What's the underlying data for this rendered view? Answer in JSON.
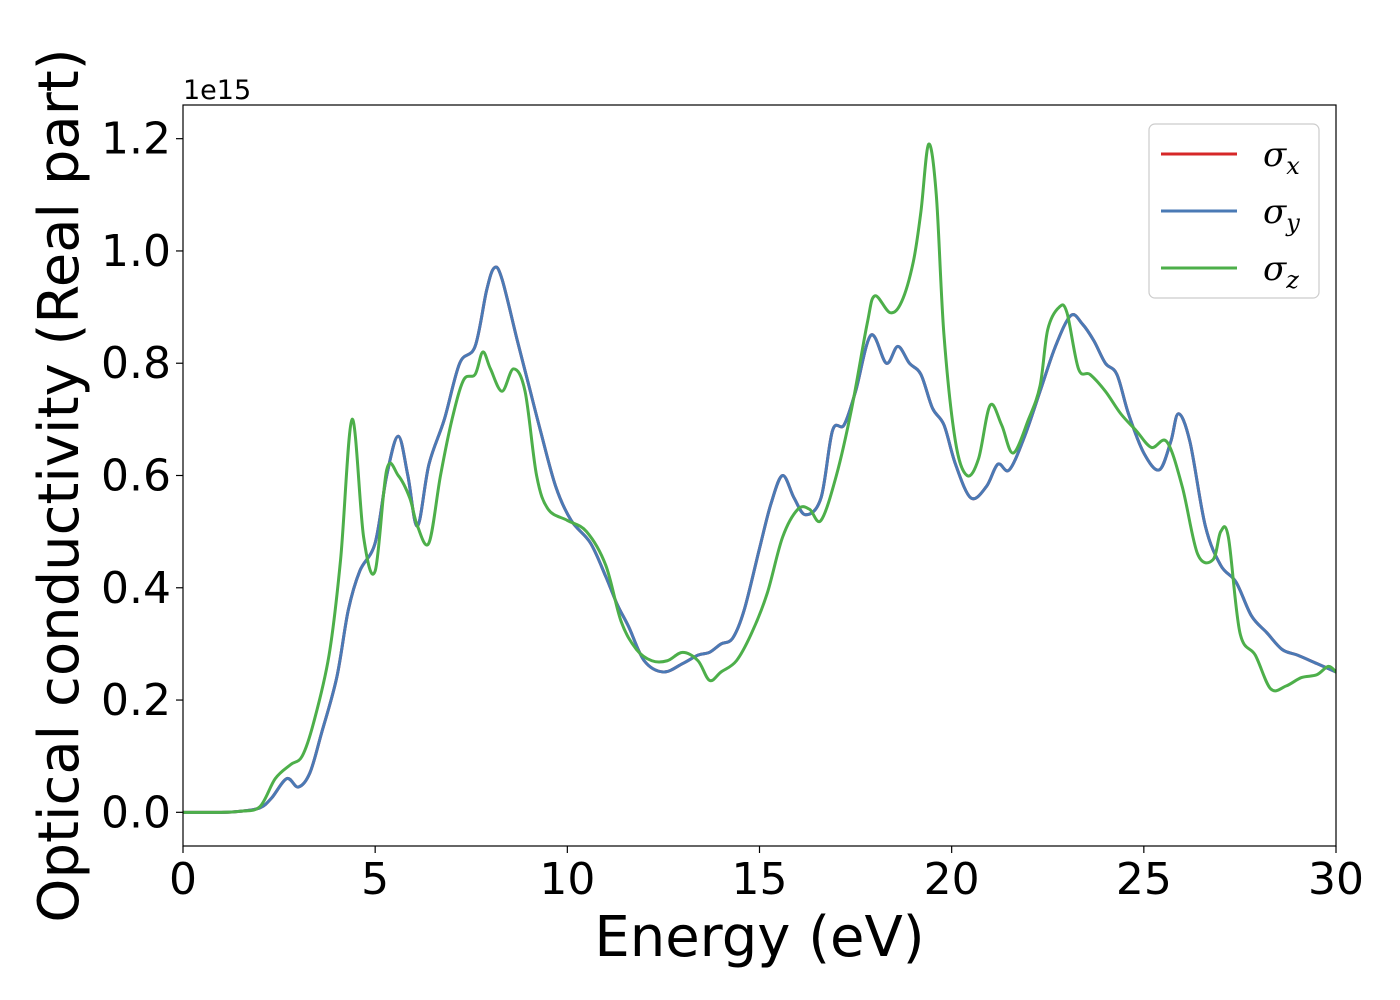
{
  "chart_data": {
    "type": "line",
    "title": "",
    "xlabel": "Energy (eV)",
    "ylabel": "Optical conductivity (Real part)",
    "y_offset_label": "1e15",
    "xlim": [
      0,
      30
    ],
    "ylim": [
      -0.06,
      1.26
    ],
    "xticks": [
      0,
      5,
      10,
      15,
      20,
      25,
      30
    ],
    "xtick_labels": [
      "0",
      "5",
      "10",
      "15",
      "20",
      "25",
      "30"
    ],
    "yticks": [
      0.0,
      0.2,
      0.4,
      0.6,
      0.8,
      1.0,
      1.2
    ],
    "ytick_labels": [
      "0.0",
      "0.2",
      "0.4",
      "0.6",
      "0.8",
      "1.0",
      "1.2"
    ],
    "grid": false,
    "legend_position": "top-right",
    "series": [
      {
        "name": "σ_x",
        "symbol": "σ",
        "subscript": "x",
        "color": "#d62728",
        "x": [
          0,
          1,
          1.5,
          2,
          2.3,
          2.7,
          3.0,
          3.3,
          3.6,
          4.0,
          4.3,
          4.6,
          5.0,
          5.3,
          5.6,
          5.85,
          6.1,
          6.4,
          6.8,
          7.2,
          7.6,
          7.9,
          8.1,
          8.3,
          8.7,
          9.0,
          9.3,
          9.7,
          10.1,
          10.6,
          11.0,
          11.3,
          11.6,
          12.0,
          12.5,
          13.0,
          13.4,
          13.7,
          14.0,
          14.3,
          14.6,
          15.0,
          15.3,
          15.6,
          15.9,
          16.2,
          16.6,
          16.9,
          17.2,
          17.5,
          17.9,
          18.3,
          18.6,
          18.9,
          19.2,
          19.5,
          19.8,
          20.1,
          20.5,
          20.9,
          21.2,
          21.5,
          21.9,
          22.3,
          22.7,
          23.1,
          23.4,
          23.7,
          24.0,
          24.3,
          24.6,
          25.0,
          25.4,
          25.7,
          25.9,
          26.2,
          26.6,
          27.0,
          27.4,
          27.8,
          28.2,
          28.6,
          29.0,
          29.5,
          30.0
        ],
        "y": [
          0.0,
          0.0,
          0.002,
          0.008,
          0.025,
          0.06,
          0.045,
          0.07,
          0.14,
          0.24,
          0.36,
          0.43,
          0.48,
          0.6,
          0.67,
          0.6,
          0.51,
          0.62,
          0.7,
          0.8,
          0.83,
          0.93,
          0.97,
          0.95,
          0.84,
          0.76,
          0.68,
          0.58,
          0.52,
          0.48,
          0.42,
          0.37,
          0.33,
          0.27,
          0.25,
          0.265,
          0.28,
          0.285,
          0.3,
          0.31,
          0.36,
          0.47,
          0.55,
          0.6,
          0.56,
          0.53,
          0.56,
          0.68,
          0.69,
          0.75,
          0.85,
          0.8,
          0.83,
          0.8,
          0.78,
          0.72,
          0.69,
          0.62,
          0.56,
          0.58,
          0.62,
          0.61,
          0.67,
          0.75,
          0.83,
          0.885,
          0.87,
          0.84,
          0.8,
          0.78,
          0.71,
          0.64,
          0.61,
          0.66,
          0.71,
          0.66,
          0.51,
          0.44,
          0.41,
          0.35,
          0.32,
          0.29,
          0.28,
          0.265,
          0.25
        ]
      },
      {
        "name": "σ_y",
        "symbol": "σ",
        "subscript": "y",
        "color": "#4a7ab5",
        "x": [
          0,
          1,
          1.5,
          2,
          2.3,
          2.7,
          3.0,
          3.3,
          3.6,
          4.0,
          4.3,
          4.6,
          5.0,
          5.3,
          5.6,
          5.85,
          6.1,
          6.4,
          6.8,
          7.2,
          7.6,
          7.9,
          8.1,
          8.3,
          8.7,
          9.0,
          9.3,
          9.7,
          10.1,
          10.6,
          11.0,
          11.3,
          11.6,
          12.0,
          12.5,
          13.0,
          13.4,
          13.7,
          14.0,
          14.3,
          14.6,
          15.0,
          15.3,
          15.6,
          15.9,
          16.2,
          16.6,
          16.9,
          17.2,
          17.5,
          17.9,
          18.3,
          18.6,
          18.9,
          19.2,
          19.5,
          19.8,
          20.1,
          20.5,
          20.9,
          21.2,
          21.5,
          21.9,
          22.3,
          22.7,
          23.1,
          23.4,
          23.7,
          24.0,
          24.3,
          24.6,
          25.0,
          25.4,
          25.7,
          25.9,
          26.2,
          26.6,
          27.0,
          27.4,
          27.8,
          28.2,
          28.6,
          29.0,
          29.5,
          30.0
        ],
        "y": [
          0.0,
          0.0,
          0.002,
          0.008,
          0.025,
          0.06,
          0.045,
          0.07,
          0.14,
          0.24,
          0.36,
          0.43,
          0.48,
          0.6,
          0.67,
          0.6,
          0.51,
          0.62,
          0.7,
          0.8,
          0.83,
          0.93,
          0.97,
          0.95,
          0.84,
          0.76,
          0.68,
          0.58,
          0.52,
          0.48,
          0.42,
          0.37,
          0.33,
          0.27,
          0.25,
          0.265,
          0.28,
          0.285,
          0.3,
          0.31,
          0.36,
          0.47,
          0.55,
          0.6,
          0.56,
          0.53,
          0.56,
          0.68,
          0.69,
          0.75,
          0.85,
          0.8,
          0.83,
          0.8,
          0.78,
          0.72,
          0.69,
          0.62,
          0.56,
          0.58,
          0.62,
          0.61,
          0.67,
          0.75,
          0.83,
          0.885,
          0.87,
          0.84,
          0.8,
          0.78,
          0.71,
          0.64,
          0.61,
          0.66,
          0.71,
          0.66,
          0.51,
          0.44,
          0.41,
          0.35,
          0.32,
          0.29,
          0.28,
          0.265,
          0.25
        ]
      },
      {
        "name": "σ_z",
        "symbol": "σ",
        "subscript": "z",
        "color": "#4daf4a",
        "x": [
          0,
          1,
          1.5,
          2,
          2.4,
          2.8,
          3.1,
          3.4,
          3.8,
          4.1,
          4.4,
          4.7,
          5.0,
          5.3,
          5.6,
          5.9,
          6.1,
          6.4,
          6.7,
          7.0,
          7.3,
          7.6,
          7.8,
          8.0,
          8.3,
          8.6,
          8.9,
          9.2,
          9.5,
          10.0,
          10.5,
          11.0,
          11.4,
          11.8,
          12.2,
          12.6,
          13.0,
          13.4,
          13.7,
          14.0,
          14.4,
          14.8,
          15.2,
          15.6,
          16.0,
          16.3,
          16.6,
          17.0,
          17.4,
          17.8,
          18.0,
          18.4,
          18.7,
          19.0,
          19.2,
          19.4,
          19.6,
          19.8,
          20.1,
          20.4,
          20.7,
          21.0,
          21.3,
          21.6,
          22.0,
          22.3,
          22.5,
          22.8,
          23.0,
          23.3,
          23.6,
          24.0,
          24.4,
          24.8,
          25.2,
          25.6,
          26.0,
          26.4,
          26.8,
          27.0,
          27.2,
          27.5,
          27.9,
          28.3,
          28.7,
          29.1,
          29.5,
          29.8,
          30.0
        ],
        "y": [
          0.0,
          0.0,
          0.002,
          0.01,
          0.06,
          0.085,
          0.1,
          0.16,
          0.28,
          0.45,
          0.7,
          0.49,
          0.43,
          0.61,
          0.6,
          0.56,
          0.51,
          0.48,
          0.6,
          0.7,
          0.77,
          0.78,
          0.82,
          0.79,
          0.75,
          0.79,
          0.75,
          0.6,
          0.54,
          0.52,
          0.5,
          0.44,
          0.34,
          0.29,
          0.27,
          0.27,
          0.285,
          0.27,
          0.235,
          0.25,
          0.27,
          0.32,
          0.39,
          0.49,
          0.54,
          0.54,
          0.52,
          0.6,
          0.72,
          0.87,
          0.92,
          0.89,
          0.91,
          0.98,
          1.07,
          1.19,
          1.1,
          0.85,
          0.66,
          0.6,
          0.63,
          0.725,
          0.69,
          0.64,
          0.7,
          0.76,
          0.86,
          0.9,
          0.89,
          0.79,
          0.78,
          0.75,
          0.71,
          0.68,
          0.65,
          0.66,
          0.58,
          0.46,
          0.45,
          0.5,
          0.49,
          0.32,
          0.28,
          0.22,
          0.225,
          0.24,
          0.245,
          0.26,
          0.25
        ]
      }
    ]
  }
}
